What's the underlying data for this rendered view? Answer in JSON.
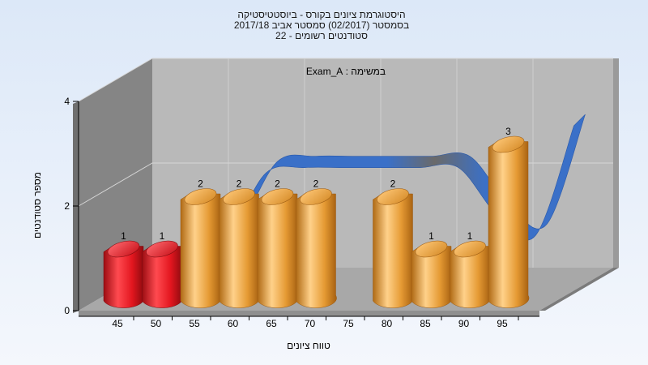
{
  "chart_data": {
    "type": "bar",
    "title_lines": [
      "היסטוגרמת ציונים בקורס - ביוסטטיסטיקה",
      "בסמסטר  (02/2017)  סמסטר אביב 2017/18",
      "סטודנטים רשומים - 22"
    ],
    "annotation": "במשימה : Exam_A",
    "xlabel": "טווח ציונים",
    "ylabel": "מספר סטודנטים",
    "x_ticks": [
      "45",
      "50",
      "55",
      "60",
      "65",
      "70",
      "75",
      "80",
      "85",
      "90",
      "95"
    ],
    "y_ticks": [
      "0",
      "2",
      "4"
    ],
    "ylim": [
      0,
      4
    ],
    "grid": true,
    "bars": [
      {
        "x": 45,
        "value": 1,
        "label": "1",
        "color": "red"
      },
      {
        "x": 50,
        "value": 1,
        "label": "1",
        "color": "red"
      },
      {
        "x": 55,
        "value": 2,
        "label": "2",
        "color": "orange"
      },
      {
        "x": 60,
        "value": 2,
        "label": "2",
        "color": "orange"
      },
      {
        "x": 65,
        "value": 2,
        "label": "2",
        "color": "orange"
      },
      {
        "x": 70,
        "value": 2,
        "label": "2",
        "color": "orange"
      },
      {
        "x": 80,
        "value": 2,
        "label": "2",
        "color": "orange"
      },
      {
        "x": 85,
        "value": 1,
        "label": "1",
        "color": "orange"
      },
      {
        "x": 90,
        "value": 1,
        "label": "1",
        "color": "orange"
      },
      {
        "x": 95,
        "value": 3,
        "label": "3",
        "color": "orange"
      }
    ],
    "trend_curve": [
      {
        "x": 50,
        "y": 0.8
      },
      {
        "x": 55,
        "y": 1.0
      },
      {
        "x": 60,
        "y": 2.2
      },
      {
        "x": 65,
        "y": 2.3
      },
      {
        "x": 70,
        "y": 2.3
      },
      {
        "x": 75,
        "y": 2.3
      },
      {
        "x": 80,
        "y": 2.3
      },
      {
        "x": 85,
        "y": 2.3
      },
      {
        "x": 90,
        "y": 1.4
      },
      {
        "x": 95,
        "y": 1.0
      },
      {
        "x": 100,
        "y": 3.1
      }
    ],
    "colors": {
      "red": "#e8202a",
      "orange": "#eaa23c",
      "trend_blue": "#3a70c8",
      "trend_grey": "#6a6a6a",
      "wall_back": "#b9b9b9",
      "wall_side": "#858585",
      "floor": "#a8a8a8",
      "background_top": "#dce8f8",
      "background_bottom": "#f4f7fc"
    }
  }
}
